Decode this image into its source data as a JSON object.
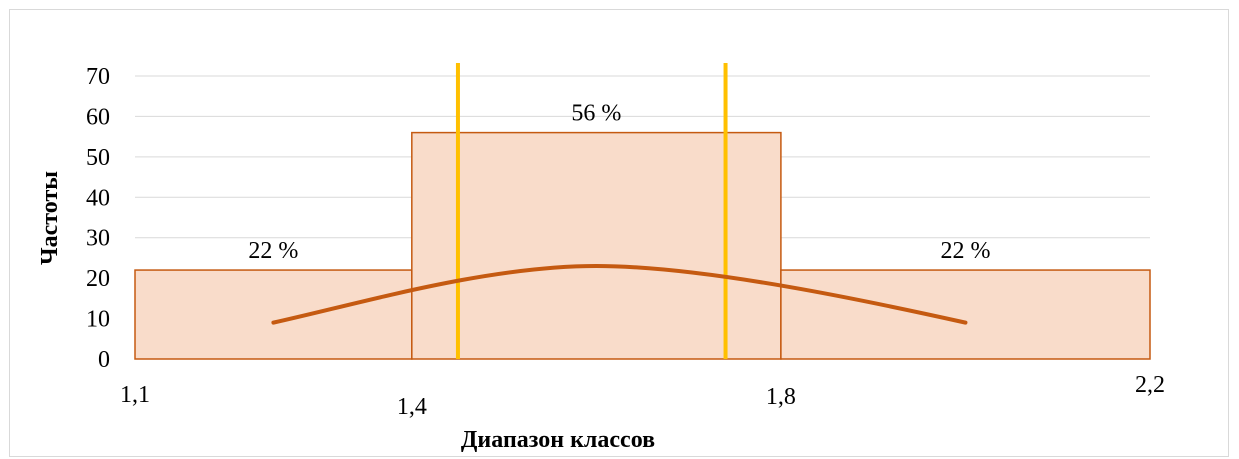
{
  "chart_data": {
    "type": "bar",
    "xlabel": "Диапазон классов",
    "ylabel": "Частоты",
    "ylim": [
      0,
      70
    ],
    "y_ticks": [
      0,
      10,
      20,
      30,
      40,
      50,
      60,
      70
    ],
    "x_tick_labels": [
      "1,1",
      "1,4",
      "1,8",
      "2,2"
    ],
    "bins": [
      {
        "from": 1.1,
        "to": 1.4,
        "value": 22,
        "label": "22 %"
      },
      {
        "from": 1.4,
        "to": 1.8,
        "value": 56,
        "label": "56 %"
      },
      {
        "from": 1.8,
        "to": 2.2,
        "value": 22,
        "label": "22 %"
      }
    ],
    "curve": {
      "type": "line",
      "points": [
        [
          1.25,
          9
        ],
        [
          1.6,
          23
        ],
        [
          2.0,
          9
        ]
      ]
    },
    "vertical_lines": [
      1.45,
      1.74
    ],
    "grid": true,
    "colors": {
      "bar_fill": "#f9dcca",
      "bar_stroke": "#c55a11",
      "curve": "#c55a11",
      "vertical_lines": "#ffc000",
      "grid": "#d9d9d9"
    }
  }
}
